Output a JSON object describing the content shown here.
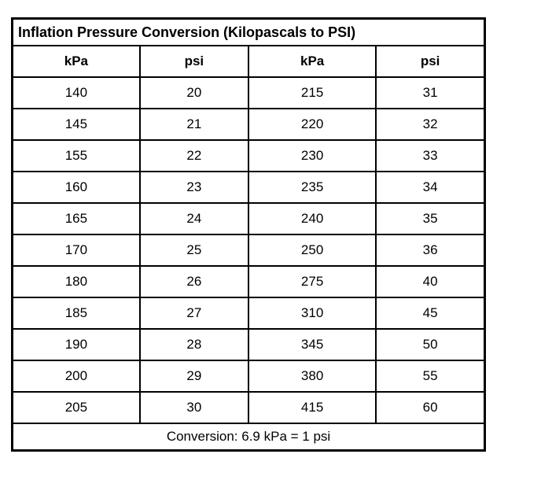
{
  "title": "Inflation Pressure Conversion (Kilopascals to PSI)",
  "table": {
    "headers": [
      "kPa",
      "psi",
      "kPa",
      "psi"
    ],
    "rows": [
      [
        "140",
        "20",
        "215",
        "31"
      ],
      [
        "145",
        "21",
        "220",
        "32"
      ],
      [
        "155",
        "22",
        "230",
        "33"
      ],
      [
        "160",
        "23",
        "235",
        "34"
      ],
      [
        "165",
        "24",
        "240",
        "35"
      ],
      [
        "170",
        "25",
        "250",
        "36"
      ],
      [
        "180",
        "26",
        "275",
        "40"
      ],
      [
        "185",
        "27",
        "310",
        "45"
      ],
      [
        "190",
        "28",
        "345",
        "50"
      ],
      [
        "200",
        "29",
        "380",
        "55"
      ],
      [
        "205",
        "30",
        "415",
        "60"
      ]
    ],
    "footer": "Conversion: 6.9 kPa = 1 psi"
  },
  "colors": {
    "border": "#000000",
    "background": "#ffffff",
    "text": "#000000"
  }
}
